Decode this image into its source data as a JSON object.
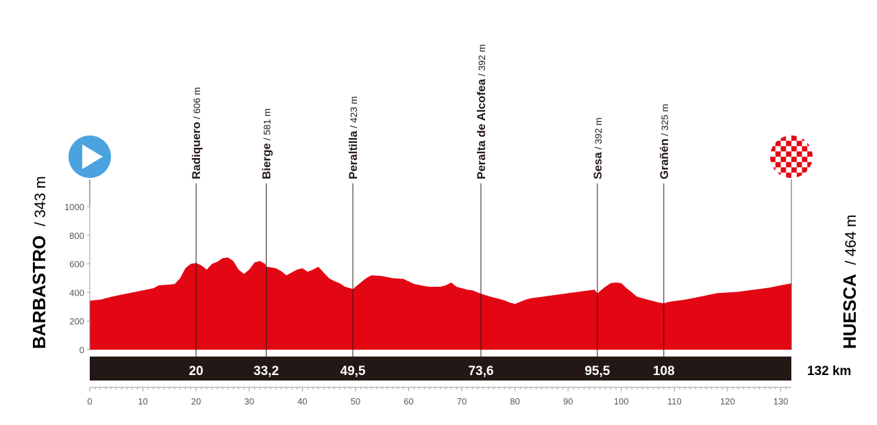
{
  "colors": {
    "profile_fill": "#e30613",
    "bar_fill": "#231815",
    "start_marker": "#4aa3df",
    "finish_checker": "#e30613",
    "axis": "#9a9a9a",
    "text": "#231815"
  },
  "start": {
    "name": "BARBASTRO",
    "altitude": "/ 343 m",
    "icon": "play-icon"
  },
  "finish": {
    "name": "HUESCA",
    "altitude": "/ 464 m",
    "icon": "checkered-flag-icon"
  },
  "total_distance": "132 km",
  "chart_data": {
    "type": "area",
    "xlim": [
      0,
      132
    ],
    "ylim": [
      0,
      1000
    ],
    "grid": false,
    "x_ticks": [
      "0",
      "10",
      "20",
      "30",
      "40",
      "50",
      "60",
      "70",
      "80",
      "90",
      "100",
      "110",
      "120",
      "130"
    ],
    "y_ticks": [
      "0",
      "200",
      "400",
      "600",
      "800",
      "1000"
    ],
    "profile": [
      [
        0,
        343
      ],
      [
        2,
        350
      ],
      [
        4,
        370
      ],
      [
        6,
        385
      ],
      [
        8,
        400
      ],
      [
        10,
        415
      ],
      [
        12,
        430
      ],
      [
        13,
        450
      ],
      [
        15,
        455
      ],
      [
        16,
        460
      ],
      [
        17,
        500
      ],
      [
        18,
        570
      ],
      [
        19,
        600
      ],
      [
        20,
        606
      ],
      [
        21,
        590
      ],
      [
        22,
        560
      ],
      [
        23,
        600
      ],
      [
        24,
        615
      ],
      [
        25,
        640
      ],
      [
        26,
        645
      ],
      [
        27,
        620
      ],
      [
        28,
        560
      ],
      [
        29,
        530
      ],
      [
        30,
        560
      ],
      [
        31,
        610
      ],
      [
        32,
        620
      ],
      [
        33,
        600
      ],
      [
        33.2,
        581
      ],
      [
        35,
        570
      ],
      [
        36,
        550
      ],
      [
        37,
        520
      ],
      [
        38,
        540
      ],
      [
        39,
        560
      ],
      [
        40,
        570
      ],
      [
        41,
        545
      ],
      [
        42,
        560
      ],
      [
        43,
        580
      ],
      [
        44,
        540
      ],
      [
        45,
        500
      ],
      [
        46,
        480
      ],
      [
        47,
        465
      ],
      [
        48,
        440
      ],
      [
        49,
        430
      ],
      [
        49.5,
        423
      ],
      [
        50,
        440
      ],
      [
        51,
        470
      ],
      [
        52,
        500
      ],
      [
        53,
        520
      ],
      [
        55,
        515
      ],
      [
        57,
        500
      ],
      [
        59,
        495
      ],
      [
        61,
        460
      ],
      [
        63,
        445
      ],
      [
        64,
        440
      ],
      [
        66,
        440
      ],
      [
        67,
        450
      ],
      [
        68,
        470
      ],
      [
        69,
        440
      ],
      [
        70,
        430
      ],
      [
        71,
        420
      ],
      [
        72,
        415
      ],
      [
        73,
        400
      ],
      [
        73.6,
        392
      ],
      [
        75,
        375
      ],
      [
        76,
        365
      ],
      [
        77,
        355
      ],
      [
        78,
        345
      ],
      [
        79,
        330
      ],
      [
        80,
        320
      ],
      [
        81,
        335
      ],
      [
        82,
        350
      ],
      [
        83,
        360
      ],
      [
        84,
        365
      ],
      [
        85,
        370
      ],
      [
        86,
        375
      ],
      [
        87,
        380
      ],
      [
        88,
        385
      ],
      [
        89,
        390
      ],
      [
        90,
        395
      ],
      [
        91,
        400
      ],
      [
        92,
        405
      ],
      [
        93,
        410
      ],
      [
        94,
        415
      ],
      [
        95,
        420
      ],
      [
        95.5,
        392
      ],
      [
        96,
        410
      ],
      [
        97,
        440
      ],
      [
        98,
        465
      ],
      [
        99,
        470
      ],
      [
        100,
        465
      ],
      [
        101,
        430
      ],
      [
        102,
        400
      ],
      [
        103,
        370
      ],
      [
        104,
        360
      ],
      [
        105,
        350
      ],
      [
        106,
        340
      ],
      [
        107,
        330
      ],
      [
        108,
        325
      ],
      [
        109,
        335
      ],
      [
        110,
        340
      ],
      [
        112,
        350
      ],
      [
        114,
        365
      ],
      [
        116,
        380
      ],
      [
        118,
        395
      ],
      [
        120,
        400
      ],
      [
        122,
        405
      ],
      [
        124,
        415
      ],
      [
        126,
        425
      ],
      [
        128,
        435
      ],
      [
        130,
        450
      ],
      [
        132,
        464
      ]
    ],
    "waypoints": [
      {
        "name": "Radiquero",
        "altitude": " / 606 m",
        "km": 20,
        "km_label": "20"
      },
      {
        "name": "Bierge",
        "altitude": " / 581 m",
        "km": 33.2,
        "km_label": "33,2"
      },
      {
        "name": "Peraltilla",
        "altitude": " / 423 m",
        "km": 49.5,
        "km_label": "49,5"
      },
      {
        "name": "Peralta de Alcofea",
        "altitude": " / 392 m",
        "km": 73.6,
        "km_label": "73,6"
      },
      {
        "name": "Sesa",
        "altitude": " / 392 m",
        "km": 95.5,
        "km_label": "95,5"
      },
      {
        "name": "Grañén",
        "altitude": " / 325 m",
        "km": 108,
        "km_label": "108"
      }
    ]
  }
}
